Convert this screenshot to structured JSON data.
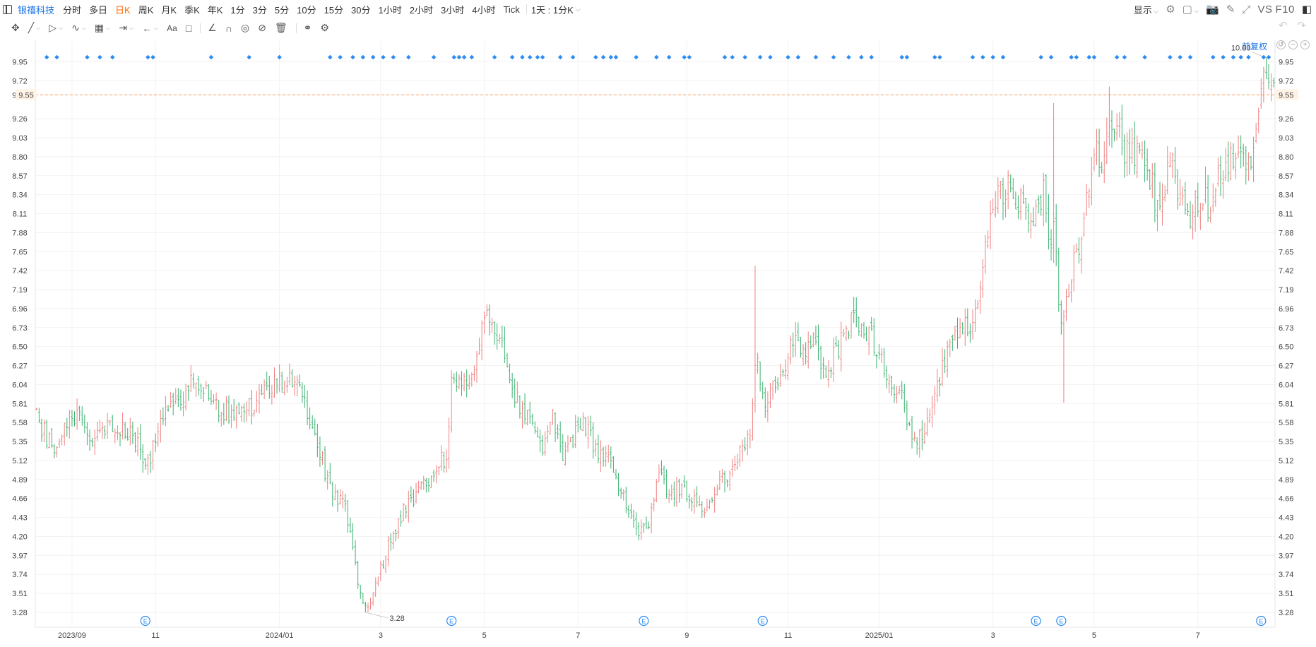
{
  "toolbar": {
    "stock_name": "银禧科技",
    "periods": [
      "分时",
      "多日",
      "日K",
      "周K",
      "月K",
      "季K",
      "年K",
      "1分",
      "3分",
      "5分",
      "10分",
      "15分",
      "30分",
      "1小时",
      "2小时",
      "3小时",
      "4小时",
      "Tick"
    ],
    "active_period": "日K",
    "range_select": "1天 : 1分K",
    "display_label": "显示",
    "vs_label": "VS",
    "f10_label": "F10"
  },
  "fq_label": "前复权",
  "chart_data": {
    "type": "ohlc",
    "price_axis": {
      "ticks": [
        "9.95",
        "9.72",
        "9.55",
        "9.26",
        "9.03",
        "8.80",
        "8.57",
        "8.34",
        "8.11",
        "7.88",
        "7.65",
        "7.42",
        "7.19",
        "6.96",
        "6.73",
        "6.50",
        "6.27",
        "6.04",
        "5.81",
        "5.58",
        "5.35",
        "5.12",
        "4.89",
        "4.66",
        "4.43",
        "4.20",
        "3.97",
        "3.74",
        "3.51",
        "3.28"
      ],
      "ylim": [
        3.1,
        10.1
      ]
    },
    "time_axis": {
      "labels": [
        "2023/09",
        "11",
        "2024/01",
        "3",
        "5",
        "7",
        "9",
        "11",
        "2025/01",
        "3",
        "5",
        "7"
      ],
      "label_bar_index": [
        14,
        47,
        96,
        136,
        177,
        214,
        257,
        297,
        333,
        378,
        418,
        459
      ]
    },
    "last_price": "9.55",
    "low_marker": "3.28",
    "high_marker": "10.00",
    "up_color": "#f08080",
    "down_color": "#3cb371",
    "ref_line_color": "#ffa05a",
    "event_icon_label": "E",
    "event_bar_index": [
      43,
      164,
      240,
      287,
      395,
      405,
      484
    ],
    "dot_bar_index": [
      4,
      8,
      20,
      25,
      30,
      44,
      46,
      69,
      84,
      96,
      116,
      120,
      125,
      129,
      133,
      137,
      141,
      147,
      157,
      165,
      167,
      169,
      172,
      181,
      188,
      192,
      195,
      198,
      200,
      207,
      212,
      221,
      224,
      227,
      229,
      237,
      245,
      250,
      256,
      258,
      272,
      275,
      280,
      286,
      290,
      297,
      301,
      308,
      315,
      321,
      326,
      330,
      342,
      344,
      355,
      357,
      370,
      374,
      378,
      382,
      397,
      401,
      409,
      411,
      416,
      418,
      427,
      430,
      438,
      448,
      452,
      456,
      465,
      469,
      473,
      476,
      479,
      485,
      487
    ],
    "keypoints": [
      [
        0,
        5.62
      ],
      [
        6,
        5.28
      ],
      [
        10,
        5.45
      ],
      [
        16,
        5.72
      ],
      [
        22,
        5.42
      ],
      [
        28,
        5.5
      ],
      [
        34,
        5.55
      ],
      [
        40,
        5.28
      ],
      [
        44,
        5.12
      ],
      [
        52,
        5.78
      ],
      [
        62,
        6.05
      ],
      [
        70,
        5.82
      ],
      [
        80,
        5.62
      ],
      [
        88,
        5.9
      ],
      [
        96,
        6.08
      ],
      [
        100,
        6.12
      ],
      [
        104,
        5.92
      ],
      [
        110,
        5.42
      ],
      [
        116,
        4.8
      ],
      [
        122,
        4.52
      ],
      [
        126,
        3.85
      ],
      [
        128,
        3.55
      ],
      [
        130,
        3.3
      ],
      [
        133,
        3.55
      ],
      [
        137,
        3.9
      ],
      [
        142,
        4.3
      ],
      [
        146,
        4.55
      ],
      [
        152,
        4.82
      ],
      [
        158,
        5.02
      ],
      [
        162,
        5.2
      ],
      [
        164,
        6.05
      ],
      [
        170,
        6.02
      ],
      [
        174,
        6.35
      ],
      [
        177,
        6.95
      ],
      [
        182,
        6.72
      ],
      [
        186,
        6.25
      ],
      [
        190,
        5.85
      ],
      [
        195,
        5.62
      ],
      [
        200,
        5.32
      ],
      [
        204,
        5.65
      ],
      [
        208,
        5.05
      ],
      [
        212,
        5.38
      ],
      [
        216,
        5.62
      ],
      [
        220,
        5.3
      ],
      [
        226,
        5.1
      ],
      [
        230,
        4.82
      ],
      [
        234,
        4.55
      ],
      [
        238,
        4.2
      ],
      [
        242,
        4.38
      ],
      [
        246,
        4.92
      ],
      [
        250,
        4.72
      ],
      [
        255,
        4.8
      ],
      [
        260,
        4.6
      ],
      [
        264,
        4.52
      ],
      [
        270,
        4.85
      ],
      [
        276,
        5.1
      ],
      [
        280,
        5.32
      ],
      [
        282,
        5.48
      ],
      [
        284,
        6.4
      ],
      [
        288,
        5.85
      ],
      [
        292,
        6.05
      ],
      [
        296,
        6.35
      ],
      [
        300,
        6.7
      ],
      [
        304,
        6.4
      ],
      [
        308,
        6.55
      ],
      [
        312,
        6.2
      ],
      [
        316,
        6.4
      ],
      [
        320,
        6.75
      ],
      [
        324,
        6.85
      ],
      [
        330,
        6.62
      ],
      [
        334,
        6.3
      ],
      [
        338,
        6.0
      ],
      [
        342,
        5.85
      ],
      [
        346,
        5.35
      ],
      [
        350,
        5.42
      ],
      [
        354,
        5.8
      ],
      [
        358,
        6.2
      ],
      [
        362,
        6.52
      ],
      [
        366,
        6.72
      ],
      [
        370,
        6.7
      ],
      [
        374,
        7.45
      ],
      [
        378,
        8.2
      ],
      [
        380,
        8.35
      ],
      [
        384,
        8.45
      ],
      [
        388,
        8.3
      ],
      [
        392,
        8.0
      ],
      [
        396,
        8.1
      ],
      [
        398,
        8.5
      ],
      [
        400,
        7.65
      ],
      [
        402,
        8.05
      ],
      [
        404,
        7.05
      ],
      [
        406,
        6.75
      ],
      [
        410,
        7.55
      ],
      [
        414,
        8.0
      ],
      [
        418,
        8.85
      ],
      [
        421,
        8.7
      ],
      [
        424,
        9.35
      ],
      [
        428,
        9.02
      ],
      [
        432,
        8.8
      ],
      [
        436,
        8.92
      ],
      [
        440,
        8.55
      ],
      [
        444,
        8.05
      ],
      [
        448,
        8.82
      ],
      [
        452,
        8.3
      ],
      [
        456,
        8.0
      ],
      [
        460,
        8.4
      ],
      [
        464,
        8.18
      ],
      [
        468,
        8.62
      ],
      [
        472,
        8.78
      ],
      [
        476,
        8.9
      ],
      [
        480,
        8.72
      ],
      [
        484,
        9.6
      ],
      [
        486,
        9.72
      ],
      [
        488,
        9.55
      ]
    ]
  }
}
